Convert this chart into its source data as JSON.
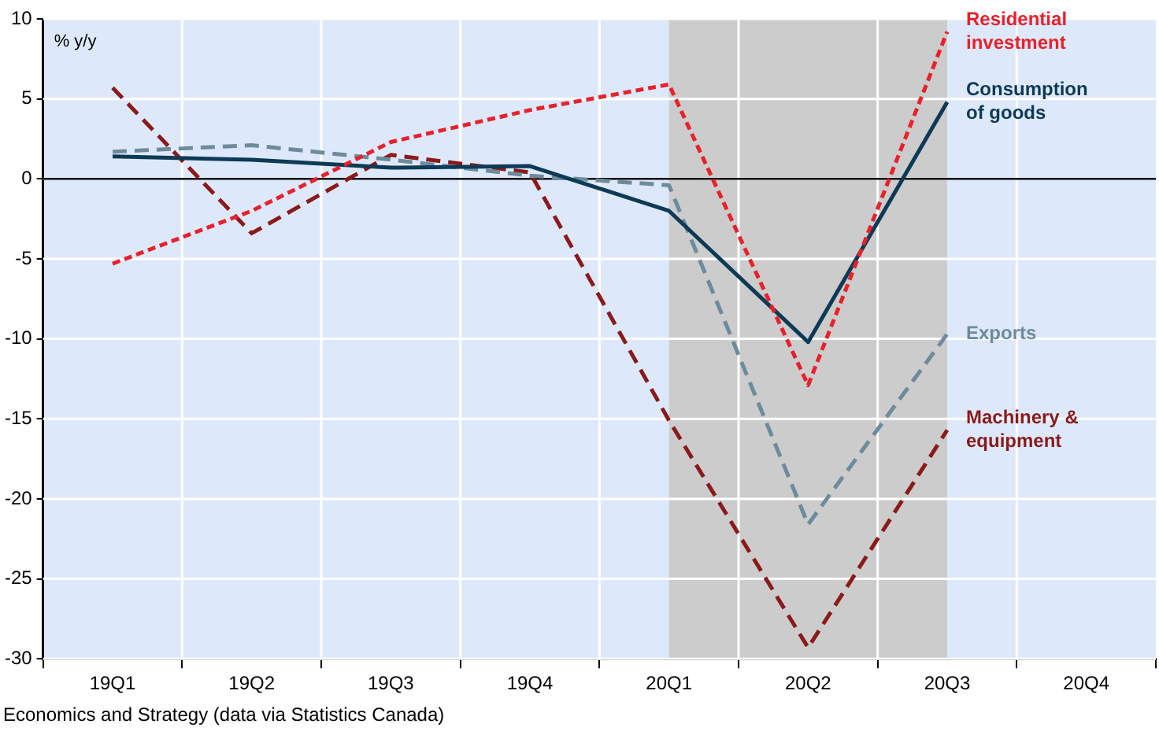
{
  "chart_data": {
    "type": "line",
    "ylabel": "% y/y",
    "categories": [
      "19Q1",
      "19Q2",
      "19Q3",
      "19Q4",
      "20Q1",
      "20Q2",
      "20Q3",
      "20Q4"
    ],
    "series": [
      {
        "name": "Residential investment",
        "color": "#e8212b",
        "line_style": "dotted",
        "values": [
          -5.3,
          -2.0,
          2.3,
          4.3,
          5.9,
          -12.9,
          9.2,
          null
        ]
      },
      {
        "name": "Consumption of goods",
        "color": "#0d3a56",
        "line_style": "solid",
        "values": [
          1.4,
          1.2,
          0.7,
          0.8,
          -2.0,
          -10.2,
          4.8,
          null
        ]
      },
      {
        "name": "Exports",
        "color": "#6e8b9c",
        "line_style": "dashed",
        "values": [
          1.7,
          2.1,
          1.2,
          0.2,
          -0.4,
          -21.6,
          -9.7,
          null
        ]
      },
      {
        "name": "Machinery & equipment",
        "color": "#8b1a1a",
        "line_style": "dashed",
        "values": [
          5.7,
          -3.4,
          1.5,
          0.4,
          -15.1,
          -29.3,
          -15.7,
          null
        ]
      }
    ],
    "ylim": [
      -30,
      10
    ],
    "yticks": [
      -30,
      -25,
      -20,
      -15,
      -10,
      -5,
      0,
      5,
      10
    ],
    "grid": true,
    "legend": false,
    "marker": "none",
    "ref_lines": [
      {
        "axis": "y",
        "value": 0,
        "color": "#000000"
      }
    ],
    "bands": [
      {
        "axis": "x",
        "from": "20Q1",
        "to": "20Q3",
        "color": "#cccccc"
      }
    ],
    "annotations": [
      "Economics and Strategy (data via Statistics Canada)"
    ]
  }
}
